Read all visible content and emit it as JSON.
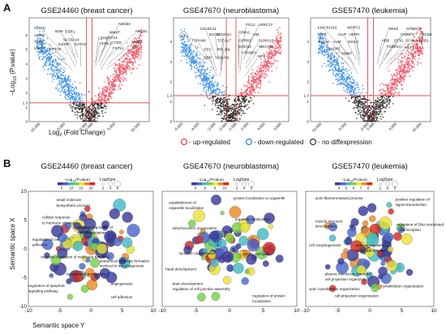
{
  "panel_labels": [
    "A",
    "B"
  ],
  "legend": [
    {
      "label": "- up-regulated",
      "color": "#e8404a"
    },
    {
      "label": "- down-regulated",
      "color": "#2e88e0"
    },
    {
      "label": "- no diffexpression",
      "color": "#333333"
    }
  ],
  "colorscale": [
    "#3b3b9a",
    "#4a69c9",
    "#43b9c6",
    "#77d04a",
    "#e9e23a",
    "#ee8a25",
    "#d42b22"
  ],
  "chart_data": [
    {
      "type": "scatter",
      "kind": "volcano",
      "title": "GSE24460 (breast cancer)",
      "xlabel": "Log2 (Fold Change)",
      "xlabel_main": "Log",
      "xlabel_sub": "2",
      "xlabel_rest": " (Fold Change)",
      "ylabel_main": "−Log",
      "ylabel_sub": "10",
      "ylabel_rest": " (P.value)",
      "xlim": [
        -12000,
        12000
      ],
      "ylim": [
        0,
        7.2
      ],
      "xticks": [
        -10000,
        -5000,
        -585,
        585,
        5000,
        10000
      ],
      "xtick_labels": [
        "-10,000",
        "-5,000",
        "-0.585",
        "0.585",
        "5,000",
        "10,000"
      ],
      "yticks": [
        0,
        1,
        1.3,
        2,
        3,
        4,
        5,
        6
      ],
      "ytick_labels": [
        "0",
        "1",
        "1.3",
        "2",
        "3",
        "4",
        "5",
        "6"
      ],
      "threshold_x": [
        -585,
        585
      ],
      "threshold_y": 1.3,
      "n_points": 1400,
      "down_genes": [
        {
          "name": "CDH1",
          "x": -11000,
          "y": 6.4
        },
        {
          "name": "B2M",
          "x": -6800,
          "y": 6.2
        },
        {
          "name": "ESR1",
          "x": -4800,
          "y": 6.15
        },
        {
          "name": "AGR2",
          "x": -11000,
          "y": 5.9
        },
        {
          "name": "SLC5A14",
          "x": -5200,
          "y": 5.6
        },
        {
          "name": "TFF1",
          "x": -11000,
          "y": 5.45
        },
        {
          "name": "S100P",
          "x": -6200,
          "y": 5.3
        },
        {
          "name": "GATA3",
          "x": -3000,
          "y": 5.3
        },
        {
          "name": "UBD",
          "x": -11000,
          "y": 5.0
        },
        {
          "name": "KRT19",
          "x": -8000,
          "y": 4.95
        }
      ],
      "up_genes": [
        {
          "name": "ABCB4",
          "x": 5800,
          "y": 6.7
        },
        {
          "name": "ABCB1",
          "x": 9200,
          "y": 6.2
        },
        {
          "name": "NNMT",
          "x": 4000,
          "y": 6.1
        },
        {
          "name": "LDHB",
          "x": 1800,
          "y": 5.7
        },
        {
          "name": "GPX1",
          "x": 3700,
          "y": 5.75
        },
        {
          "name": "MMP1",
          "x": 8500,
          "y": 5.45
        },
        {
          "name": "UCHL1",
          "x": 2000,
          "y": 5.35
        },
        {
          "name": "CTSD",
          "x": 4400,
          "y": 5.4
        },
        {
          "name": "FSTL1",
          "x": 4700,
          "y": 5.0
        },
        {
          "name": "VIM",
          "x": 8500,
          "y": 5.1
        }
      ]
    },
    {
      "type": "scatter",
      "kind": "volcano",
      "title": "GSE47670 (neuroblastoma)",
      "xlim": [
        -7000,
        7000
      ],
      "ylim": [
        0,
        5.2
      ],
      "xticks": [
        -6000,
        -4000,
        -2000,
        -585,
        585,
        2000,
        4000,
        6000
      ],
      "xtick_labels": [
        "-6,000",
        "-4,000",
        "-2,000",
        "-0.585",
        "0.585",
        "2,000",
        "4,000",
        "6,000"
      ],
      "yticks": [
        0,
        1,
        1.3,
        2,
        3,
        4
      ],
      "ytick_labels": [
        "0",
        "1",
        "1.3",
        "2",
        "3",
        "4"
      ],
      "threshold_x": [
        -585,
        585
      ],
      "threshold_y": 1.3,
      "n_points": 1300,
      "down_genes": [
        {
          "name": "COLEC11",
          "x": -3800,
          "y": 4.6
        },
        {
          "name": "SCG5",
          "x": -2700,
          "y": 4.3
        },
        {
          "name": "CDKN1A",
          "x": -1800,
          "y": 4.3
        },
        {
          "name": "DLK1",
          "x": -6300,
          "y": 4.25
        },
        {
          "name": "TSPAN8",
          "x": -4800,
          "y": 4.0
        },
        {
          "name": "TCEAL7",
          "x": -1700,
          "y": 4.0
        },
        {
          "name": "FEV",
          "x": -3300,
          "y": 3.55
        },
        {
          "name": "RPL39L",
          "x": -1700,
          "y": 3.55
        },
        {
          "name": "DBH",
          "x": -3300,
          "y": 3.15
        },
        {
          "name": "TAGLN3",
          "x": -2000,
          "y": 3.15
        }
      ],
      "up_genes": [
        {
          "name": "FGL2",
          "x": 1800,
          "y": 4.8
        },
        {
          "name": "LRRC17",
          "x": 3300,
          "y": 4.8
        },
        {
          "name": "GRIN1",
          "x": 900,
          "y": 4.4
        },
        {
          "name": "VIM",
          "x": 2600,
          "y": 4.3
        },
        {
          "name": "GPR83",
          "x": 900,
          "y": 4.0
        },
        {
          "name": "S100A10",
          "x": 3300,
          "y": 4.0
        },
        {
          "name": "SOCS2",
          "x": 900,
          "y": 3.7
        },
        {
          "name": "MECOM",
          "x": 3400,
          "y": 3.7
        },
        {
          "name": "CRABP1",
          "x": 1300,
          "y": 3.4
        },
        {
          "name": "NPY",
          "x": 3200,
          "y": 3.2
        }
      ]
    },
    {
      "type": "scatter",
      "kind": "volcano",
      "title": "GSE57470 (leukemia)",
      "xlim": [
        -12000,
        12000
      ],
      "ylim": [
        0,
        5.2
      ],
      "xticks": [
        -10000,
        -5000,
        -585,
        585,
        5000,
        10000
      ],
      "xtick_labels": [
        "-10,000",
        "-5,000",
        "-0.585",
        "0.585",
        "5,000",
        "10,000"
      ],
      "yticks": [
        0,
        1,
        1.3,
        2,
        3,
        4
      ],
      "ytick_labels": [
        "0",
        "1",
        "1.3",
        "2",
        "3",
        "4"
      ],
      "threshold_x": [
        -585,
        585
      ],
      "threshold_y": 1.3,
      "n_points": 1400,
      "down_genes": [
        {
          "name": "LINC01419",
          "x": -10500,
          "y": 4.65
        },
        {
          "name": "WDR72",
          "x": -4700,
          "y": 4.65
        },
        {
          "name": "IGF1",
          "x": -10500,
          "y": 4.3
        },
        {
          "name": "CILP",
          "x": -6500,
          "y": 4.3
        },
        {
          "name": "HEPH",
          "x": -4300,
          "y": 4.3
        },
        {
          "name": "SRGN",
          "x": -10500,
          "y": 3.95
        },
        {
          "name": "LUM",
          "x": -7500,
          "y": 3.95
        },
        {
          "name": "EDIL3",
          "x": -4500,
          "y": 3.95
        },
        {
          "name": "ALOX5",
          "x": -8500,
          "y": 3.6
        },
        {
          "name": "NNMT",
          "x": -5800,
          "y": 3.35
        }
      ],
      "up_genes": [
        {
          "name": "GRK5",
          "x": 3500,
          "y": 4.6
        },
        {
          "name": "NT5DC4",
          "x": 7200,
          "y": 4.6
        },
        {
          "name": "CNRIP1",
          "x": 6000,
          "y": 4.3
        },
        {
          "name": "ABCB4",
          "x": 9800,
          "y": 4.3
        },
        {
          "name": "HBB",
          "x": 2200,
          "y": 4.0
        },
        {
          "name": "DTX1",
          "x": 4700,
          "y": 4.0
        },
        {
          "name": "SCIN",
          "x": 7000,
          "y": 4.0
        },
        {
          "name": "ABCB1",
          "x": 9200,
          "y": 4.0
        },
        {
          "name": "FCER1A",
          "x": 3200,
          "y": 3.7
        },
        {
          "name": "HEY1",
          "x": 6800,
          "y": 3.65
        }
      ]
    },
    {
      "type": "scatter",
      "kind": "bubble",
      "title": "GSE24460 (breast cancer)",
      "xlabel": "Semantic space Y",
      "ylabel": "Semantic space X",
      "xlim": [
        -10,
        10
      ],
      "ylim": [
        -10,
        10
      ],
      "xticks": [
        -10,
        -5,
        0,
        5,
        10
      ],
      "yticks": [
        -10,
        -5,
        0,
        5,
        10
      ],
      "colorbar_label_main": "−Log",
      "colorbar_label_sub": "10",
      "colorbar_label_rest": "(P.value)",
      "colorbar_ticks": [
        "5",
        "10",
        "15",
        "20"
      ],
      "size_legend_title": "LogSize",
      "size_legend_ticks": [
        "2",
        "4",
        "6"
      ],
      "n_bubbles": 90,
      "seed": 7,
      "terms": [
        {
          "text": "small molecule",
          "x": -5.5,
          "y": 8.3
        },
        {
          "text": "biosynthetic process",
          "x": -5.5,
          "y": 7.3
        },
        {
          "text": "cellular response",
          "x": -7.8,
          "y": 5.3
        },
        {
          "text": "to hormone stimulus",
          "x": -7.8,
          "y": 4.3
        },
        {
          "text": "negative regulation of",
          "x": -2.2,
          "y": 3.5
        },
        {
          "text": "cell differentiation",
          "x": -2.2,
          "y": 2.6
        },
        {
          "text": "regulation of cell",
          "x": -9.4,
          "y": 1.4
        },
        {
          "text": "adhesion",
          "x": -9.4,
          "y": 0.5
        },
        {
          "text": "negative regulation of molecular function",
          "x": -8.0,
          "y": -1.6
        },
        {
          "text": "anatomical structure formation",
          "x": 1.4,
          "y": -2.3
        },
        {
          "text": "involved in morphogenesis",
          "x": 1.4,
          "y": -3.2
        },
        {
          "text": "regulation of proteolysis",
          "x": -4.0,
          "y": -4.6
        },
        {
          "text": "regulation of apoptotic",
          "x": -10.0,
          "y": -6.6
        },
        {
          "text": "signaling pathway",
          "x": -10.0,
          "y": -7.5
        },
        {
          "text": "angiogenesis",
          "x": 3.2,
          "y": -6.3
        },
        {
          "text": "cell adhesion",
          "x": 3.2,
          "y": -8.6
        }
      ]
    },
    {
      "type": "scatter",
      "kind": "bubble",
      "title": "GSE47670 (neuroblastoma)",
      "xlim": [
        -10,
        10
      ],
      "ylim": [
        -10,
        10
      ],
      "xticks": [
        -10,
        -5,
        0,
        5,
        10
      ],
      "yticks": [
        -10,
        -5,
        0,
        5,
        10
      ],
      "colorbar_label_main": "−Log",
      "colorbar_label_sub": "10",
      "colorbar_label_rest": "(P.value)",
      "colorbar_ticks": [
        "4",
        "6",
        "8",
        "10"
      ],
      "size_legend_title": "LogSize",
      "size_legend_ticks": [
        "2",
        "4",
        "6"
      ],
      "n_bubbles": 90,
      "seed": 21,
      "terms": [
        {
          "text": "protein localization to organelle",
          "x": 0.6,
          "y": 8.6
        },
        {
          "text": "establishment of",
          "x": -9.0,
          "y": 7.8
        },
        {
          "text": "organelle localization",
          "x": -9.0,
          "y": 6.9
        },
        {
          "text": "organelle localization",
          "x": 0.8,
          "y": 4.9
        },
        {
          "text": "mitochondrion organization",
          "x": -8.5,
          "y": 3.4
        },
        {
          "text": "synapse organization",
          "x": -7.5,
          "y": -1.0
        },
        {
          "text": "mitotic cell cycle",
          "x": 2.0,
          "y": -1.1
        },
        {
          "text": "head development",
          "x": -9.5,
          "y": -3.7
        },
        {
          "text": "brain development",
          "x": -8.5,
          "y": -6.3
        },
        {
          "text": "regulation of cell junction assembly",
          "x": -8.5,
          "y": -7.2
        },
        {
          "text": "regulation of protein",
          "x": 3.4,
          "y": -8.4
        },
        {
          "text": "localization",
          "x": 3.4,
          "y": -9.3
        }
      ]
    },
    {
      "type": "scatter",
      "kind": "bubble",
      "title": "GSE57470 (leukemia)",
      "xlim": [
        -10,
        10
      ],
      "ylim": [
        -10,
        10
      ],
      "xticks": [
        -10,
        -5,
        0,
        5,
        10
      ],
      "yticks": [
        -10,
        -5,
        0,
        5,
        10
      ],
      "colorbar_label_main": "−Log",
      "colorbar_label_sub": "10",
      "colorbar_label_rest": "(P.value)",
      "colorbar_ticks": [
        "4",
        "5",
        "6",
        "7",
        "8"
      ],
      "size_legend_title": "LogSize",
      "size_legend_ticks": [
        "2",
        "4",
        "6"
      ],
      "n_bubbles": 80,
      "seed": 33,
      "terms": [
        {
          "text": "actin filament-based process",
          "x": -8.5,
          "y": 8.6
        },
        {
          "text": "positive regulation of",
          "x": 4.0,
          "y": 8.4
        },
        {
          "text": "signal transduction",
          "x": 4.0,
          "y": 7.5
        },
        {
          "text": "muscle structure",
          "x": -8.5,
          "y": 4.6
        },
        {
          "text": "development",
          "x": -8.5,
          "y": 3.7
        },
        {
          "text": "regulation of DNA-templated",
          "x": 4.2,
          "y": 4.0
        },
        {
          "text": "transcription",
          "x": 4.8,
          "y": 3.1
        },
        {
          "text": "cell morphogenesis",
          "x": -9.5,
          "y": 0.4
        },
        {
          "text": "positive regulation of",
          "x": -2.2,
          "y": 0.4
        },
        {
          "text": "molecular function",
          "x": -2.2,
          "y": -0.5
        },
        {
          "text": "plasma membrane bounded",
          "x": -7.0,
          "y": -4.6
        },
        {
          "text": "cell projection organization",
          "x": -7.0,
          "y": -5.5
        },
        {
          "text": "actin cytoskeleton organization",
          "x": -9.5,
          "y": -7.2
        },
        {
          "text": "cytoskeleton organization",
          "x": 1.8,
          "y": -6.7
        },
        {
          "text": "cell projection organization",
          "x": -5.5,
          "y": -8.4
        }
      ]
    }
  ]
}
